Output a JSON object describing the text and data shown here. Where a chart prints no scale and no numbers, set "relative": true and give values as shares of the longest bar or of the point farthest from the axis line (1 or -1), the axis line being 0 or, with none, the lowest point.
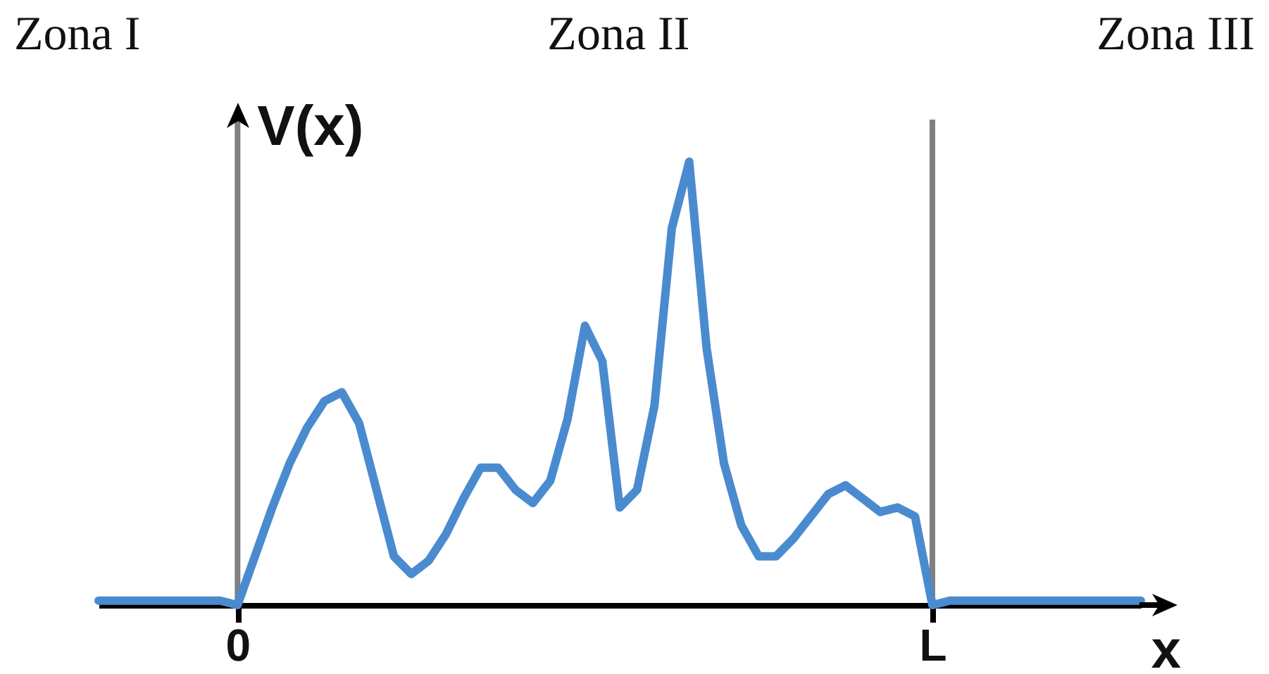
{
  "chart_data": {
    "type": "line",
    "relative": true,
    "xlabel": "x",
    "ylabel": "V(x)",
    "annotations": [
      "Zona I",
      "Zona II",
      "Zona III"
    ],
    "categories": [
      null,
      null,
      null,
      null,
      null,
      null,
      null,
      null,
      "0",
      null,
      null,
      null,
      null,
      null,
      null,
      null,
      null,
      null,
      null,
      null,
      null,
      null,
      null,
      null,
      null,
      null,
      null,
      null,
      null,
      null,
      null,
      null,
      null,
      null,
      null,
      null,
      null,
      null,
      null,
      null,
      null,
      null,
      null,
      null,
      null,
      null,
      null,
      null,
      "L",
      null,
      null,
      null,
      null,
      null,
      null,
      null,
      null,
      null,
      null,
      null,
      null
    ],
    "series": [
      {
        "color": "#4a8bd0",
        "values": [
          0.01,
          0.01,
          0.01,
          0.01,
          0.01,
          0.01,
          0.01,
          0.01,
          0,
          0.11,
          0.22,
          0.32,
          0.4,
          0.46,
          0.48,
          0.41,
          0.26,
          0.11,
          0.07,
          0.1,
          0.16,
          0.24,
          0.31,
          0.31,
          0.26,
          0.23,
          0.28,
          0.42,
          0.63,
          0.55,
          0.22,
          0.26,
          0.45,
          0.85,
          1,
          0.58,
          0.32,
          0.18,
          0.11,
          0.11,
          0.15,
          0.2,
          0.25,
          0.27,
          0.24,
          0.21,
          0.22,
          0.2,
          0,
          0.01,
          0.01,
          0.01,
          0.01,
          0.01,
          0.01,
          0.01,
          0.01,
          0.01,
          0.01,
          0.01,
          0.01
        ]
      }
    ],
    "ref_lines": [
      {
        "axis": "x",
        "value": "0",
        "color": "#808080"
      },
      {
        "axis": "x",
        "value": "L",
        "color": "#808080"
      }
    ],
    "marker": "none",
    "line_style": "solid"
  }
}
